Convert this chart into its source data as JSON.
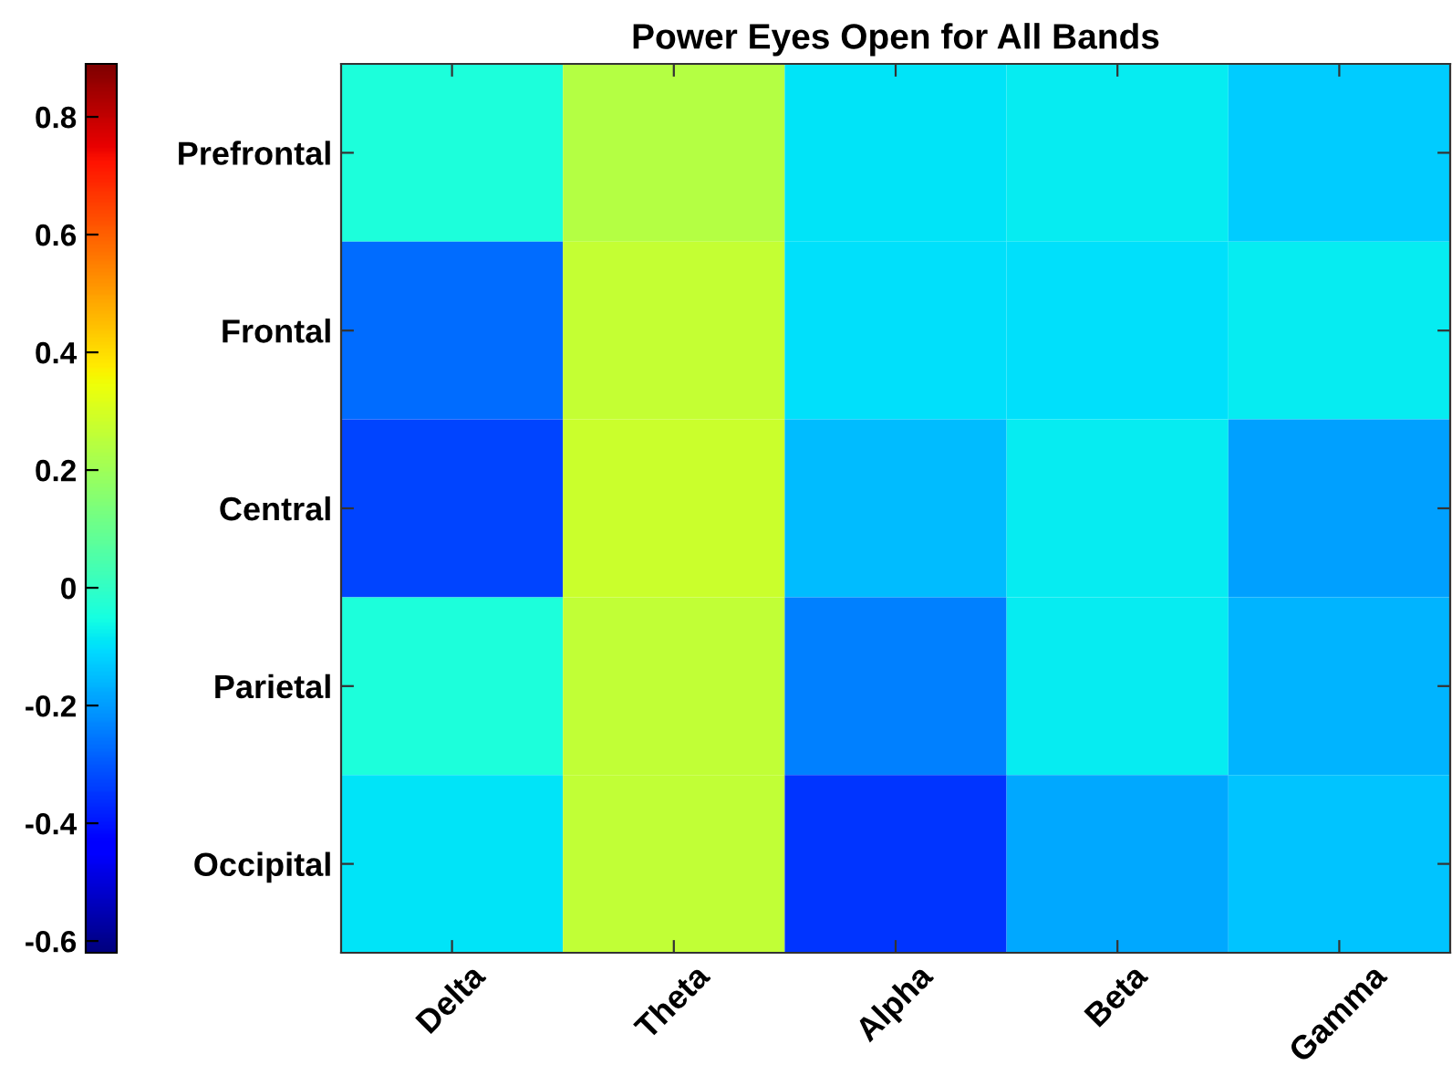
{
  "chart_data": {
    "type": "heatmap",
    "title": "Power Eyes Open for All Bands",
    "categories": [
      "Delta",
      "Theta",
      "Alpha",
      "Beta",
      "Gamma"
    ],
    "y_categories": [
      "Prefrontal",
      "Frontal",
      "Central",
      "Parietal",
      "Occipital"
    ],
    "cells": [
      [
        -0.04,
        0.24,
        -0.09,
        -0.08,
        -0.13
      ],
      [
        -0.27,
        0.27,
        -0.1,
        -0.1,
        -0.08
      ],
      [
        -0.33,
        0.28,
        -0.15,
        -0.08,
        -0.19
      ],
      [
        -0.04,
        0.26,
        -0.24,
        -0.08,
        -0.16
      ],
      [
        -0.09,
        0.26,
        -0.35,
        -0.18,
        -0.14
      ]
    ],
    "clim": [
      -0.62,
      0.89
    ],
    "cticks": [
      -0.6,
      -0.4,
      -0.2,
      0,
      0.2,
      0.4,
      0.6,
      0.8
    ]
  }
}
